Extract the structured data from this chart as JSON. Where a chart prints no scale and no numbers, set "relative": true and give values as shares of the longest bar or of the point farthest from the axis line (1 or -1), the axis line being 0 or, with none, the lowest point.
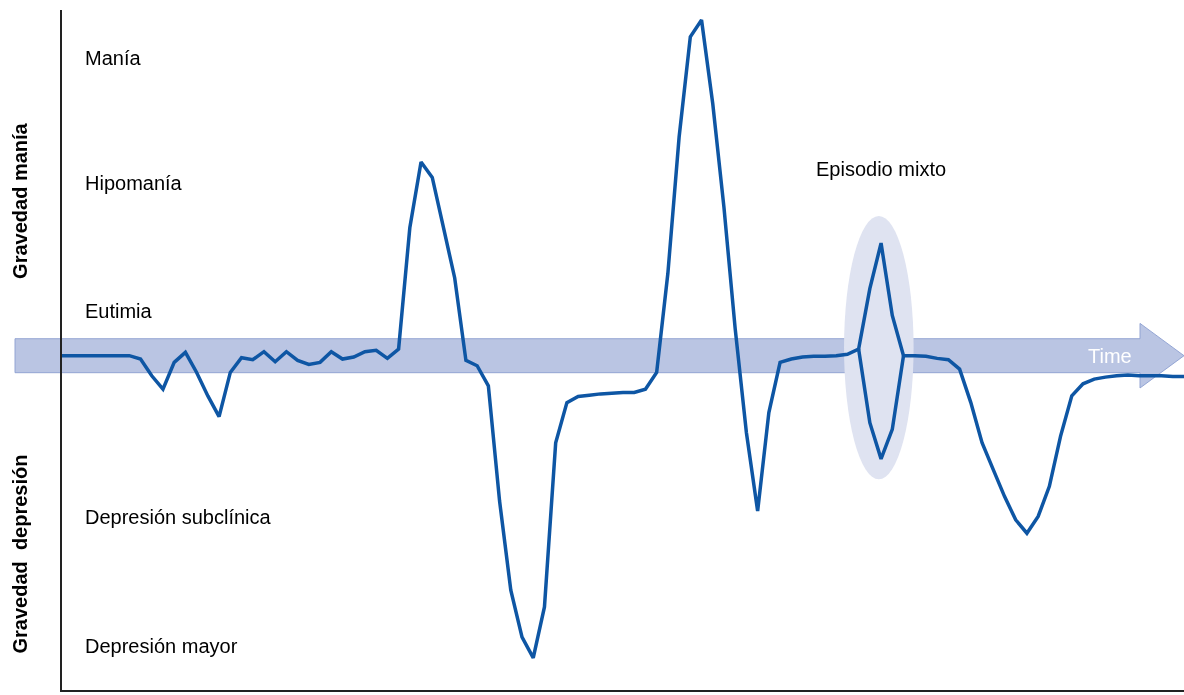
{
  "chart_data": {
    "type": "line",
    "relative": true,
    "xlabel": "Time",
    "categories": [
      null,
      null,
      null,
      null,
      null,
      null,
      null,
      null,
      null,
      null,
      null,
      null,
      null,
      null,
      null,
      null,
      null,
      null,
      null,
      null,
      null,
      null,
      null,
      null,
      null,
      null,
      null,
      null,
      null,
      null,
      null,
      null,
      null,
      null,
      null,
      null,
      null,
      null,
      null,
      null,
      null,
      null,
      null,
      null,
      null,
      null,
      null,
      null,
      null,
      null,
      null,
      null,
      null,
      null,
      null,
      null,
      null,
      null,
      null,
      null,
      null,
      null,
      null,
      null,
      null,
      null,
      null,
      null,
      null,
      null,
      null,
      null,
      null,
      null,
      null,
      null,
      null,
      null,
      null,
      null,
      null,
      null,
      null,
      null,
      null,
      null,
      null,
      null,
      null,
      null,
      null,
      null,
      null,
      null,
      null,
      null,
      null,
      null,
      null,
      null,
      null
    ],
    "series": [
      {
        "color": "#0e56a4",
        "values": [
          0.499,
          0.499,
          0.499,
          0.499,
          0.499,
          0.499,
          0.499,
          0.494,
          0.469,
          0.449,
          0.489,
          0.504,
          0.474,
          0.439,
          0.408,
          0.474,
          0.496,
          0.493,
          0.505,
          0.49,
          0.505,
          0.492,
          0.486,
          0.489,
          0.505,
          0.494,
          0.497,
          0.505,
          0.507,
          0.495,
          0.509,
          0.69,
          0.788,
          0.765,
          0.69,
          0.615,
          0.492,
          0.484,
          0.454,
          0.282,
          0.149,
          0.079,
          0.048,
          0.124,
          0.369,
          0.429,
          0.438,
          0.44,
          0.442,
          0.443,
          0.444,
          0.444,
          0.449,
          0.474,
          0.622,
          0.825,
          0.975,
          1,
          0.875,
          0.72,
          0.539,
          0.384,
          0.267,
          0.414,
          0.489,
          0.494,
          0.497,
          0.498,
          0.498,
          0.499,
          0.501,
          0.509,
          0.599,
          0.667,
          0.559,
          0.499,
          0.499,
          0.498,
          0.495,
          0.493,
          0.479,
          0.429,
          0.369,
          0.329,
          0.289,
          0.254,
          0.234,
          0.259,
          0.304,
          0.379,
          0.439,
          0.457,
          0.464,
          0.467,
          0.469,
          0.47,
          0.469,
          0.469,
          0.469,
          0.468,
          0.468
        ]
      },
      {
        "color": "#0e56a4",
        "values": [
          null,
          null,
          null,
          null,
          null,
          null,
          null,
          null,
          null,
          null,
          null,
          null,
          null,
          null,
          null,
          null,
          null,
          null,
          null,
          null,
          null,
          null,
          null,
          null,
          null,
          null,
          null,
          null,
          null,
          null,
          null,
          null,
          null,
          null,
          null,
          null,
          null,
          null,
          null,
          null,
          null,
          null,
          null,
          null,
          null,
          null,
          null,
          null,
          null,
          null,
          null,
          null,
          null,
          null,
          null,
          null,
          null,
          null,
          null,
          null,
          null,
          null,
          null,
          null,
          null,
          null,
          null,
          null,
          null,
          null,
          null,
          0.509,
          0.399,
          0.345,
          0.389,
          0.499,
          null,
          null,
          null,
          null,
          null,
          null,
          null,
          null,
          null,
          null,
          null,
          null,
          null,
          null,
          null,
          null,
          null,
          null,
          null,
          null,
          null,
          null,
          null,
          null,
          null
        ]
      }
    ],
    "annotations": [
      "Gravedad manía",
      "Gravedad  depresión",
      "Manía",
      "Hipomanía",
      "Eutimia",
      "Depresión subclínica",
      "Depresión mayor",
      "Episodio mixto"
    ],
    "grid": false,
    "marker": "none",
    "line_style": "solid"
  }
}
